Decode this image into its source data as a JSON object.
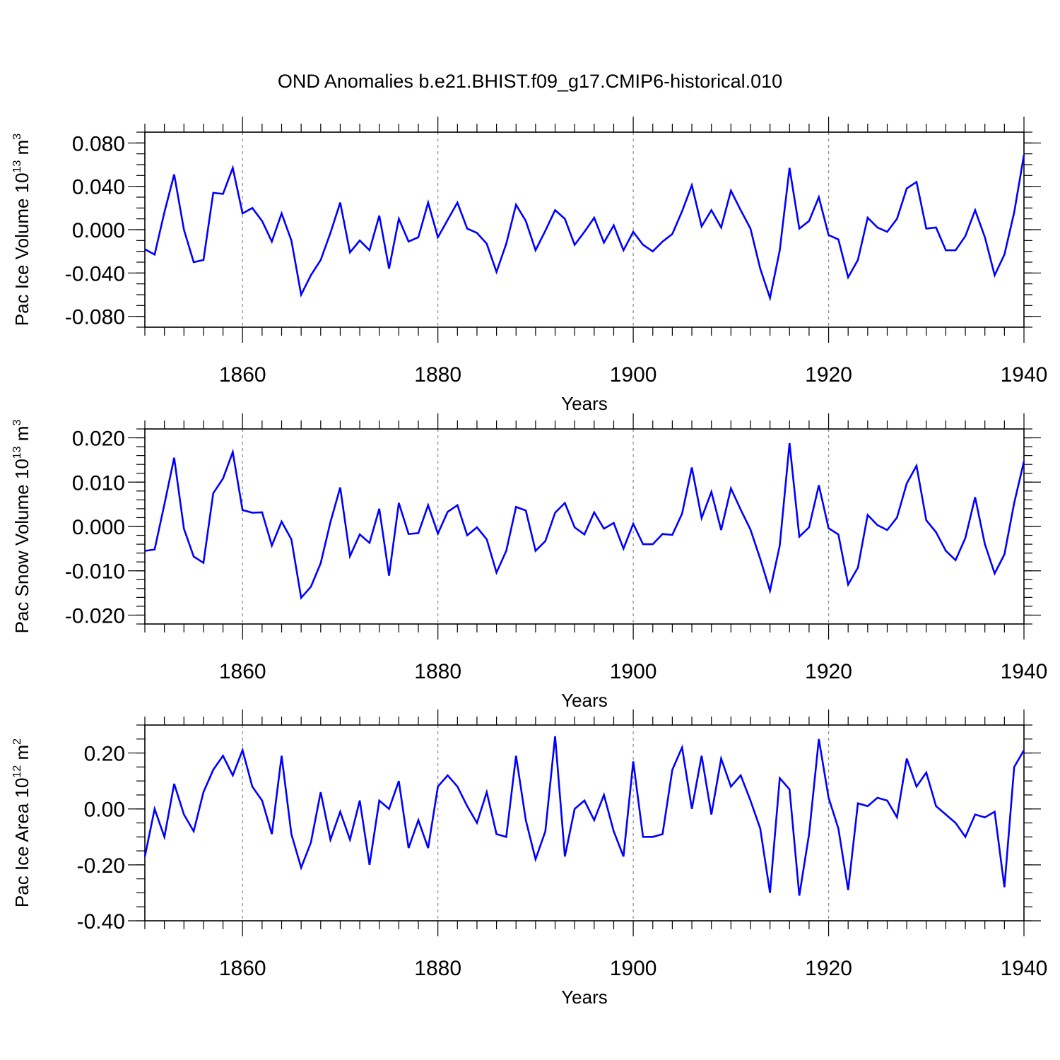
{
  "title": "OND Anomalies b.e21.BHIST.f09_g17.CMIP6-historical.010",
  "colors": {
    "line": "#0000ff",
    "axis": "#000000",
    "grid": "#888888"
  },
  "chart_data": [
    {
      "type": "line",
      "ylabel": "Pac Ice Volume",
      "units_base": "10",
      "units_exp": "13",
      "units_unit": "m",
      "units_unit_exp": "3",
      "xlabel": "Years",
      "xlim": [
        1850,
        1940
      ],
      "ylim": [
        -0.09,
        0.09
      ],
      "xticks": [
        1860,
        1880,
        1900,
        1920,
        1940
      ],
      "xtick_labels": [
        "1860",
        "1880",
        "1900",
        "1920",
        "1940"
      ],
      "yticks": [
        -0.08,
        -0.04,
        0.0,
        0.04,
        0.08
      ],
      "ytick_labels": [
        "-0.080",
        "-0.040",
        "0.000",
        "0.040",
        "0.080"
      ],
      "ytick_minor_step": 0.01,
      "series": [
        {
          "name": "Pac Ice Volume",
          "values": [
            -0.018,
            -0.023,
            0.016,
            0.051,
            0.0,
            -0.03,
            -0.028,
            0.034,
            0.033,
            0.057,
            0.015,
            0.02,
            0.008,
            -0.011,
            0.015,
            -0.01,
            -0.06,
            -0.042,
            -0.028,
            -0.003,
            0.025,
            -0.021,
            -0.01,
            -0.019,
            0.013,
            -0.036,
            0.01,
            -0.011,
            -0.007,
            0.025,
            -0.007,
            0.009,
            0.025,
            0.001,
            -0.003,
            -0.013,
            -0.039,
            -0.013,
            0.023,
            0.008,
            -0.019,
            -0.001,
            0.018,
            0.01,
            -0.014,
            -0.002,
            0.011,
            -0.012,
            0.004,
            -0.019,
            -0.002,
            -0.014,
            -0.02,
            -0.011,
            -0.004,
            0.017,
            0.041,
            0.003,
            0.018,
            0.002,
            0.036,
            0.018,
            0.001,
            -0.036,
            -0.063,
            -0.019,
            0.057,
            0.001,
            0.008,
            0.03,
            -0.005,
            -0.009,
            -0.044,
            -0.028,
            0.011,
            0.002,
            -0.002,
            0.01,
            0.038,
            0.044,
            0.001,
            0.002,
            -0.019,
            -0.019,
            -0.006,
            0.018,
            -0.007,
            -0.042,
            -0.023,
            0.016,
            0.069
          ]
        }
      ]
    },
    {
      "type": "line",
      "ylabel": "Pac Snow Volume",
      "units_base": "10",
      "units_exp": "13",
      "units_unit": "m",
      "units_unit_exp": "3",
      "xlabel": "Years",
      "xlim": [
        1850,
        1940
      ],
      "ylim": [
        -0.022,
        0.022
      ],
      "xticks": [
        1860,
        1880,
        1900,
        1920,
        1940
      ],
      "xtick_labels": [
        "1860",
        "1880",
        "1900",
        "1920",
        "1940"
      ],
      "yticks": [
        -0.02,
        -0.01,
        0.0,
        0.01,
        0.02
      ],
      "ytick_labels": [
        "-0.020",
        "-0.010",
        "0.000",
        "0.010",
        "0.020"
      ],
      "ytick_minor_step": 0.002,
      "series": [
        {
          "name": "Pac Snow Volume",
          "values": [
            -0.0055,
            -0.0052,
            0.005,
            0.0155,
            -0.0005,
            -0.0068,
            -0.0082,
            0.0075,
            0.0108,
            0.0168,
            0.0037,
            0.0031,
            0.0032,
            -0.0043,
            0.0011,
            -0.0029,
            -0.0161,
            -0.0136,
            -0.0083,
            0.001,
            0.0088,
            -0.0067,
            -0.0018,
            -0.0037,
            0.004,
            -0.0111,
            0.0053,
            -0.0017,
            -0.0015,
            0.0048,
            -0.0016,
            0.0033,
            0.0048,
            -0.002,
            -0.0002,
            -0.0029,
            -0.0104,
            -0.0055,
            0.0044,
            0.0036,
            -0.0055,
            -0.0033,
            0.0031,
            0.0053,
            -0.0002,
            -0.0018,
            0.0032,
            -0.0005,
            0.0008,
            -0.005,
            0.0006,
            -0.004,
            -0.004,
            -0.0017,
            -0.0019,
            0.0029,
            0.0133,
            0.0019,
            0.0078,
            -0.0008,
            0.0086,
            0.0038,
            -0.0007,
            -0.0073,
            -0.0145,
            -0.0043,
            0.0188,
            -0.0023,
            -0.0002,
            0.0093,
            -0.0004,
            -0.0018,
            -0.0131,
            -0.0093,
            0.0026,
            0.0003,
            -0.0008,
            0.002,
            0.0097,
            0.0137,
            0.0014,
            -0.0013,
            -0.0055,
            -0.0076,
            -0.0026,
            0.0066,
            -0.004,
            -0.0106,
            -0.0063,
            0.0053,
            0.0147
          ]
        }
      ]
    },
    {
      "type": "line",
      "ylabel": "Pac Ice Area",
      "units_base": "10",
      "units_exp": "12",
      "units_unit": "m",
      "units_unit_exp": "2",
      "xlabel": "Years",
      "xlim": [
        1850,
        1940
      ],
      "ylim": [
        -0.4,
        0.3
      ],
      "xticks": [
        1860,
        1880,
        1900,
        1920,
        1940
      ],
      "xtick_labels": [
        "1860",
        "1880",
        "1900",
        "1920",
        "1940"
      ],
      "yticks": [
        -0.4,
        -0.2,
        0.0,
        0.2
      ],
      "ytick_labels": [
        "-0.40",
        "-0.20",
        "0.00",
        "0.20"
      ],
      "ytick_minor_step": 0.05,
      "series": [
        {
          "name": "Pac Ice Area",
          "values": [
            -0.17,
            0.0,
            -0.1,
            0.09,
            -0.02,
            -0.08,
            0.06,
            0.14,
            0.19,
            0.12,
            0.21,
            0.08,
            0.03,
            -0.09,
            0.19,
            -0.09,
            -0.21,
            -0.12,
            0.06,
            -0.11,
            -0.01,
            -0.11,
            0.03,
            -0.2,
            0.03,
            0.0,
            0.1,
            -0.14,
            -0.04,
            -0.14,
            0.08,
            0.12,
            0.08,
            0.01,
            -0.05,
            0.06,
            -0.09,
            -0.1,
            0.19,
            -0.04,
            -0.18,
            -0.08,
            0.26,
            -0.17,
            0.0,
            0.03,
            -0.04,
            0.05,
            -0.08,
            -0.17,
            0.17,
            -0.1,
            -0.1,
            -0.09,
            0.14,
            0.22,
            0.0,
            0.19,
            -0.02,
            0.18,
            0.08,
            0.12,
            0.03,
            -0.07,
            -0.3,
            0.11,
            0.07,
            -0.31,
            -0.09,
            0.25,
            0.04,
            -0.07,
            -0.29,
            0.02,
            0.01,
            0.04,
            0.03,
            -0.03,
            0.18,
            0.08,
            0.13,
            0.01,
            -0.02,
            -0.05,
            -0.1,
            -0.02,
            -0.03,
            -0.01,
            -0.28,
            0.15,
            0.21
          ]
        }
      ]
    }
  ]
}
